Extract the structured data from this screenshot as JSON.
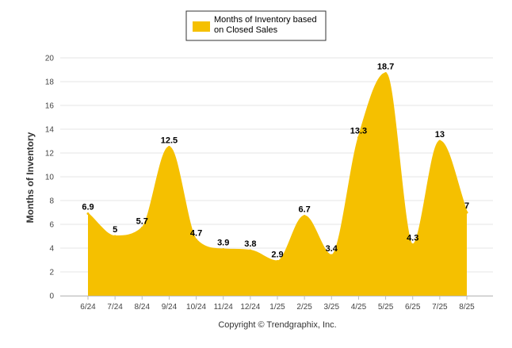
{
  "chart_data": {
    "type": "area",
    "categories": [
      "6/24",
      "7/24",
      "8/24",
      "9/24",
      "10/24",
      "11/24",
      "12/24",
      "1/25",
      "2/25",
      "3/25",
      "4/25",
      "5/25",
      "6/25",
      "7/25",
      "8/25"
    ],
    "series": [
      {
        "name": "Months of Inventory based on Closed Sales",
        "values": [
          6.9,
          5,
          5.7,
          12.5,
          4.7,
          3.9,
          3.8,
          2.9,
          6.7,
          3.4,
          13.3,
          18.7,
          4.3,
          13,
          7
        ],
        "color": "#f5c000"
      }
    ],
    "data_labels": [
      "6.9",
      "5",
      "5.7",
      "12.5",
      "4.7",
      "3.9",
      "3.8",
      "2.9",
      "6.7",
      "3.4",
      "13.3",
      "18.7",
      "4.3",
      "13",
      "7"
    ],
    "ylabel": "Months of Inventory",
    "ylim": [
      0,
      20
    ],
    "yticks": [
      0,
      2,
      4,
      6,
      8,
      10,
      12,
      14,
      16,
      18,
      20
    ],
    "grid": true,
    "legend": {
      "position": "top-center",
      "line1": "Months of Inventory based",
      "line2": "on Closed Sales"
    },
    "credit": "Copyright © Trendgraphix, Inc."
  }
}
